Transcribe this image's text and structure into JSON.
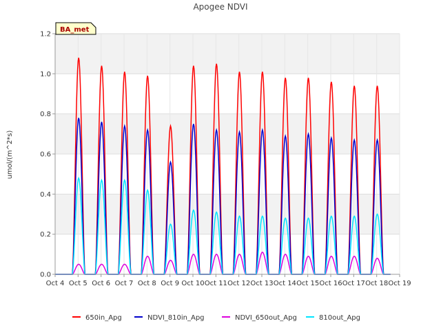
{
  "chart_data": {
    "type": "line",
    "title": "Apogee NDVI",
    "xlabel": "",
    "ylabel": "umol/(m^2*s)",
    "badge": "BA_met",
    "x_ticks": [
      "Oct 4",
      "Oct 5",
      "Oct 6",
      "Oct 7",
      "Oct 8",
      "Oct 9",
      "Oct 10",
      "Oct 11",
      "Oct 12",
      "Oct 13",
      "Oct 14",
      "Oct 15",
      "Oct 16",
      "Oct 17",
      "Oct 18",
      "Oct 19"
    ],
    "y_ticks": [
      "0.0",
      "0.2",
      "0.4",
      "0.6",
      "0.8",
      "1.0",
      "1.2"
    ],
    "xlim": [
      4,
      19
    ],
    "ylim": [
      0,
      1.2
    ],
    "grid": true,
    "background_bands": true,
    "legend_position": "bottom",
    "series": [
      {
        "name": "650in_Apg",
        "color": "#ff0000",
        "days": [
          5,
          6,
          7,
          8,
          9,
          10,
          11,
          12,
          13,
          14,
          15,
          16,
          17,
          18
        ],
        "peaks": [
          1.08,
          1.04,
          1.01,
          0.99,
          0.74,
          1.04,
          1.05,
          1.01,
          1.01,
          0.98,
          0.98,
          0.96,
          0.94,
          0.94
        ]
      },
      {
        "name": "NDVI_810in_Apg",
        "color": "#0000cc",
        "days": [
          5,
          6,
          7,
          8,
          9,
          10,
          11,
          12,
          13,
          14,
          15,
          16,
          17,
          18
        ],
        "peaks": [
          0.78,
          0.76,
          0.74,
          0.72,
          0.56,
          0.75,
          0.72,
          0.71,
          0.72,
          0.69,
          0.7,
          0.68,
          0.67,
          0.67
        ]
      },
      {
        "name": "NDVI_650out_Apg",
        "color": "#dd00dd",
        "days": [
          5,
          6,
          7,
          8,
          9,
          10,
          11,
          12,
          13,
          14,
          15,
          16,
          17,
          18
        ],
        "peaks": [
          0.05,
          0.05,
          0.05,
          0.09,
          0.07,
          0.1,
          0.1,
          0.1,
          0.11,
          0.1,
          0.09,
          0.09,
          0.09,
          0.08
        ]
      },
      {
        "name": "810out_Apg",
        "color": "#00e5ff",
        "days": [
          5,
          6,
          7,
          8,
          9,
          10,
          11,
          12,
          13,
          14,
          15,
          16,
          17,
          18
        ],
        "peaks": [
          0.48,
          0.47,
          0.47,
          0.42,
          0.25,
          0.32,
          0.31,
          0.29,
          0.29,
          0.28,
          0.28,
          0.29,
          0.29,
          0.3
        ]
      }
    ]
  }
}
